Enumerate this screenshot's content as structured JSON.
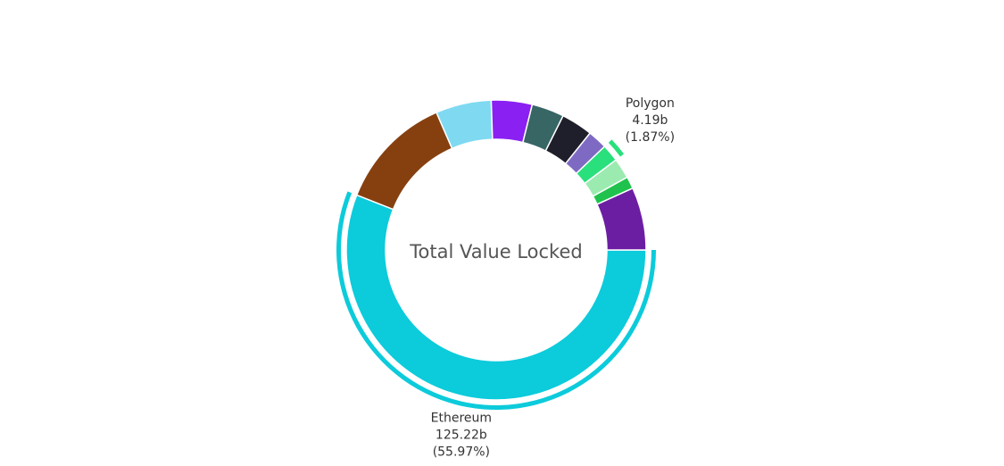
{
  "chart_data": {
    "type": "pie",
    "variant": "donut",
    "center_label": "Total Value Locked",
    "slices": [
      {
        "name": "Ethereum",
        "percent": 55.97,
        "color": "#0ccbdb",
        "label_lines": [
          "Ethereum",
          "125.22b",
          "(55.97%)"
        ]
      },
      {
        "name": "",
        "percent": 12.5,
        "color": "#864010"
      },
      {
        "name": "",
        "percent": 6.0,
        "color": "#7fd9f1"
      },
      {
        "name": "",
        "percent": 4.4,
        "color": "#8a20f2"
      },
      {
        "name": "",
        "percent": 3.5,
        "color": "#376665"
      },
      {
        "name": "",
        "percent": 3.4,
        "color": "#1f1f2b"
      },
      {
        "name": "",
        "percent": 2.1,
        "color": "#7f6ac3"
      },
      {
        "name": "Polygon",
        "percent": 1.87,
        "color": "#29e07c",
        "label_lines": [
          "Polygon",
          "4.19b",
          "(1.87%)"
        ]
      },
      {
        "name": "",
        "percent": 2.2,
        "color": "#9bebb1"
      },
      {
        "name": "",
        "percent": 1.3,
        "color": "#1fc24c"
      },
      {
        "name": "",
        "percent": 6.76,
        "color": "#6c1ea3"
      }
    ]
  }
}
